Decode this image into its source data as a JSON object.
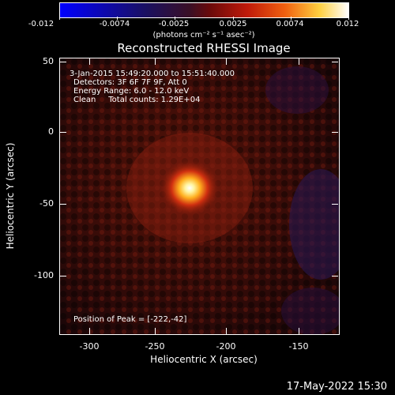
{
  "colorbar": {
    "tick_labels": [
      "-0.012",
      "-0.0074",
      "-0.0025",
      "0.0025",
      "0.0074",
      "0.012"
    ],
    "units": "(photons cm⁻² s⁻¹ asec⁻²)"
  },
  "title": "Reconstructed RHESSI Image",
  "info": {
    "time_range": "3-Jan-2015 15:49:20.000 to 15:51:40.000",
    "detectors": "Detectors: 3F 6F 7F 9F, Att 0",
    "energy": "Energy Range: 6.0 - 12.0 keV",
    "clean": "Clean     Total counts: 1.29E+04",
    "peak": "Position of Peak = [-222,-42]"
  },
  "axes": {
    "xlabel": "Heliocentric X (arcsec)",
    "ylabel": "Heliocentric Y (arcsec)",
    "x_ticks": [
      "-300",
      "-250",
      "-200",
      "-150"
    ],
    "y_ticks": [
      "50",
      "0",
      "-50",
      "-100"
    ]
  },
  "timestamp": "17-May-2022 15:30"
}
